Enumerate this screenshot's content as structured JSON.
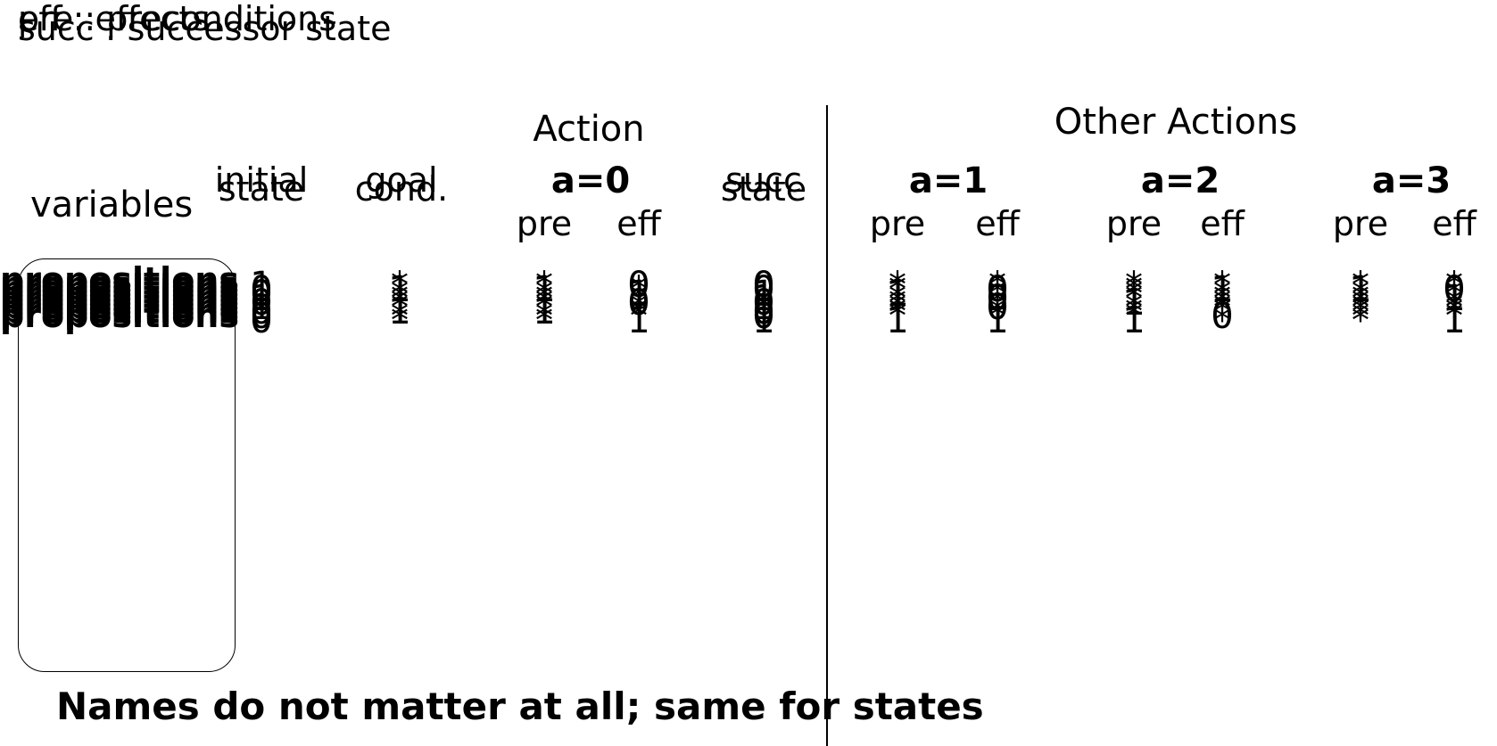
{
  "legend": {
    "pre": "pre : preconditions",
    "eff": "eff : effects",
    "succ": "succ : successor state"
  },
  "headers": {
    "action": "Action",
    "other_actions": "Other Actions",
    "variables": "variables",
    "initial": "initial",
    "state": "state",
    "goal": "goal",
    "cond": "cond.",
    "succ": "succ",
    "succ_state": "state",
    "a0": "a=0",
    "a1": "a=1",
    "a2": "a=2",
    "a3": "a=3",
    "pre": "pre",
    "eff": "eff"
  },
  "propositions": [
    "propositions",
    "propositions",
    "propositions",
    "propositions",
    "propositions",
    "propositions",
    "propositions",
    "propositions",
    "propositions"
  ],
  "columns": {
    "initial_state": [
      "1",
      "0",
      "0",
      "1",
      "0",
      "1",
      "0",
      "0",
      "0"
    ],
    "goal_cond": [
      "*",
      "1",
      "*",
      "*",
      "*",
      "*",
      "1",
      "*",
      "*"
    ],
    "a0_pre": [
      "*",
      "1",
      "*",
      "*",
      "*",
      "*",
      "1",
      "*",
      "*"
    ],
    "a0_eff": [
      "0",
      "*",
      "1",
      "*",
      "0",
      "*",
      "*",
      "*",
      "1"
    ],
    "succ_state": [
      "0",
      "0",
      "1",
      "1",
      "0",
      "1",
      "0",
      "0",
      "1"
    ],
    "a1_pre": [
      "*",
      "*",
      "1",
      "*",
      "*",
      "*",
      "*",
      "*",
      "1"
    ],
    "a1_eff": [
      "*",
      "0",
      "*",
      "0",
      "*",
      "0",
      "*",
      "*",
      "1"
    ],
    "a2_pre": [
      "*",
      "*",
      "*",
      "*",
      "1",
      "*",
      "*",
      "*",
      "1"
    ],
    "a2_eff": [
      "*",
      "1",
      "*",
      "*",
      "*",
      "*",
      "*",
      "0",
      "*"
    ],
    "a3_pre": [
      "*",
      "1",
      "*",
      "*",
      "*",
      "*",
      "*",
      "*",
      "*"
    ],
    "a3_eff": [
      "*",
      "0",
      "*",
      "1",
      "*",
      "*",
      "*",
      "*",
      "1"
    ]
  },
  "footer": "Names do not matter at all; same for states"
}
